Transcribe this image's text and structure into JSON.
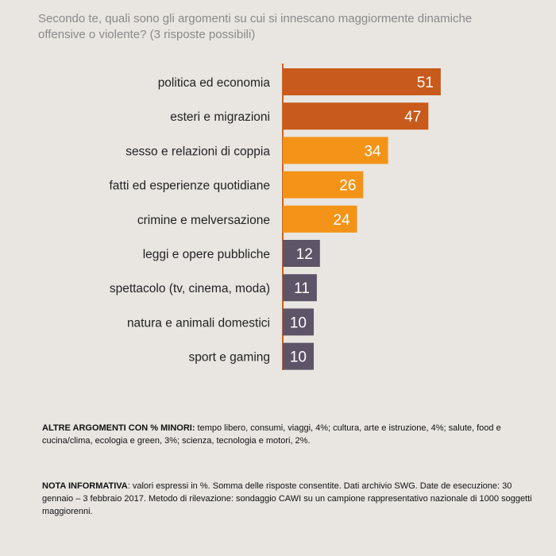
{
  "header": {
    "title_line1": "Secondo te, quali sono gli argomenti su cui si innescano maggiormente dinamiche",
    "title_line2": "offensive o violente? (3 risposte possibili)"
  },
  "chart_data": {
    "type": "bar",
    "orientation": "horizontal",
    "title": "Secondo te, quali sono gli argomenti su cui si innescano maggiormente dinamiche offensive o violente? (3 risposte possibili)",
    "categories": [
      "politica ed economia",
      "esteri e migrazioni",
      "sesso e relazioni di coppia",
      "fatti ed esperienze quotidiane",
      "crimine e melversazione",
      "leggi e opere pubbliche",
      "spettacolo (tv, cinema, moda)",
      "natura e animali domestici",
      "sport e gaming"
    ],
    "values": [
      51,
      47,
      34,
      26,
      24,
      12,
      11,
      10,
      10
    ],
    "colors": [
      "#c85a1b",
      "#c85a1b",
      "#f39419",
      "#f39419",
      "#f39419",
      "#5e5468",
      "#5e5468",
      "#5e5468",
      "#5e5468"
    ],
    "xlim": [
      0,
      55
    ],
    "grid": false,
    "legend": "none",
    "axis_line_color": "#e8590c"
  },
  "notes": {
    "altri_label": "ALTRE ARGOMENTI CON % MINORI:",
    "altri_text": " tempo libero, consumi, viaggi, 4%; cultura, arte e istruzione, 4%; salute, food e cucina/clima, ecologia e green, 3%; scienza, tecnologia e motori, 2%.",
    "nota_label": "NOTA INFORMATIVA",
    "nota_text": ": valori espressi in %. Somma delle risposte consentite. Dati archivio SWG. Date de esecuzione: 30 gennaio – 3 febbraio 2017. Metodo di rilevazione: sondaggio CAWI su un campione rappresentativo nazionale di 1000 soggetti maggiorenni."
  }
}
